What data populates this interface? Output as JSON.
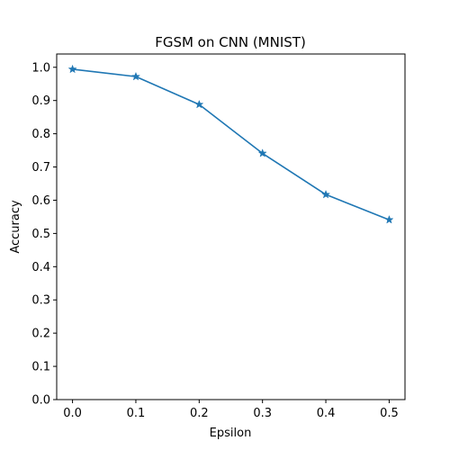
{
  "chart_data": {
    "type": "line",
    "title": "FGSM on CNN (MNIST)",
    "xlabel": "Epsilon",
    "ylabel": "Accuracy",
    "xlim": [
      -0.025,
      0.525
    ],
    "ylim": [
      0.0,
      1.04
    ],
    "xticks": [
      "0.0",
      "0.1",
      "0.2",
      "0.3",
      "0.4",
      "0.5"
    ],
    "xtick_values": [
      0.0,
      0.1,
      0.2,
      0.3,
      0.4,
      0.5
    ],
    "yticks": [
      "0.0",
      "0.1",
      "0.2",
      "0.3",
      "0.4",
      "0.5",
      "0.6",
      "0.7",
      "0.8",
      "0.9",
      "1.0"
    ],
    "ytick_values": [
      0.0,
      0.1,
      0.2,
      0.3,
      0.4,
      0.5,
      0.6,
      0.7,
      0.8,
      0.9,
      1.0
    ],
    "grid": false,
    "series": [
      {
        "marker": "star",
        "color": "#1f77b4",
        "x": [
          0.0,
          0.1,
          0.2,
          0.3,
          0.4,
          0.5
        ],
        "y": [
          0.994,
          0.972,
          0.888,
          0.741,
          0.617,
          0.541
        ]
      }
    ]
  }
}
